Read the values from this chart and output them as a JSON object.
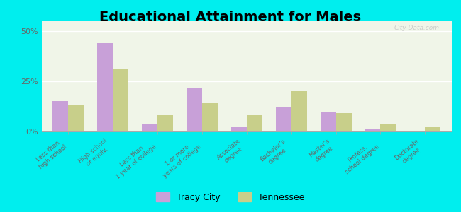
{
  "title": "Educational Attainment for Males",
  "categories": [
    "Less than\nhigh school",
    "High school\nor equiv.",
    "Less than\n1 year of college",
    "1 or more\nyears of college",
    "Associate\ndegree",
    "Bachelor's\ndegree",
    "Master's\ndegree",
    "Profess.\nschool degree",
    "Doctorate\ndegree"
  ],
  "tracy_city": [
    15,
    44,
    4,
    22,
    2,
    12,
    10,
    1,
    0
  ],
  "tennessee": [
    13,
    31,
    8,
    14,
    8,
    20,
    9,
    4,
    2
  ],
  "tracy_color": "#c8a0d8",
  "tennessee_color": "#c8cf8a",
  "background_color": "#00eeee",
  "plot_bg": "#f0f5e8",
  "bar_width": 0.35,
  "ylim": [
    0,
    55
  ],
  "yticks": [
    0,
    25,
    50
  ],
  "ytick_labels": [
    "0%",
    "25%",
    "50%"
  ],
  "title_fontsize": 14,
  "legend_labels": [
    "Tracy City",
    "Tennessee"
  ],
  "watermark": "City-Data.com"
}
